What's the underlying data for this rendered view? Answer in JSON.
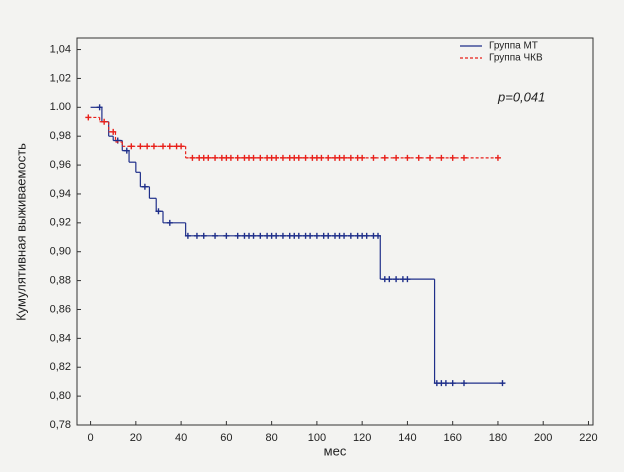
{
  "chart_data": {
    "type": "kaplan-meier",
    "xlabel": "мес",
    "ylabel": "Кумулятивная выживаемость",
    "annotation": "p=0,041",
    "xlim": [
      -6,
      222
    ],
    "xticks": [
      0,
      20,
      40,
      60,
      80,
      100,
      120,
      140,
      160,
      180,
      200,
      220
    ],
    "ylim": [
      0.78,
      1.048
    ],
    "yticks": [
      {
        "value": 0.78,
        "label": "0,78"
      },
      {
        "value": 0.8,
        "label": "0,80"
      },
      {
        "value": 0.82,
        "label": "0,82"
      },
      {
        "value": 0.84,
        "label": "0,84"
      },
      {
        "value": 0.86,
        "label": "0,86"
      },
      {
        "value": 0.88,
        "label": "0,88"
      },
      {
        "value": 0.9,
        "label": "0,90"
      },
      {
        "value": 0.92,
        "label": "0,92"
      },
      {
        "value": 0.94,
        "label": "0,94"
      },
      {
        "value": 0.96,
        "label": "0,96"
      },
      {
        "value": 0.98,
        "label": "0,98"
      },
      {
        "value": 1.0,
        "label": "1.00"
      },
      {
        "value": 1.02,
        "label": "1,02"
      },
      {
        "value": 1.04,
        "label": "1,04"
      }
    ],
    "legend": "top-right",
    "series": [
      {
        "name": "Группа МТ",
        "color": "#1f2f8a",
        "dash": false,
        "x": [
          0,
          5,
          8,
          10,
          14,
          17,
          20,
          22,
          26,
          29,
          32,
          42,
          128,
          152,
          183
        ],
        "values": [
          1.0,
          0.99,
          0.98,
          0.977,
          0.97,
          0.962,
          0.955,
          0.945,
          0.937,
          0.928,
          0.92,
          0.911,
          0.881,
          0.809,
          0.809
        ],
        "censored": [
          4,
          12,
          16,
          24,
          30,
          35,
          43,
          47,
          50,
          55,
          60,
          65,
          68,
          70,
          72,
          75,
          78,
          80,
          82,
          85,
          88,
          90,
          92,
          95,
          97,
          100,
          103,
          105,
          108,
          110,
          112,
          115,
          118,
          120,
          122,
          125,
          127,
          130,
          132,
          135,
          138,
          140,
          153,
          155,
          157,
          160,
          165,
          182
        ]
      },
      {
        "name": "Группа ЧКВ",
        "color": "#e8201a",
        "dash": true,
        "x": [
          -1,
          4,
          8,
          11,
          14,
          42,
          180
        ],
        "values": [
          0.993,
          0.99,
          0.983,
          0.976,
          0.973,
          0.965,
          0.965
        ],
        "censored": [
          -1,
          6,
          10,
          18,
          22,
          25,
          28,
          32,
          35,
          38,
          40,
          45,
          48,
          50,
          52,
          55,
          58,
          60,
          62,
          65,
          68,
          70,
          72,
          75,
          78,
          80,
          82,
          85,
          88,
          90,
          92,
          95,
          98,
          100,
          102,
          105,
          108,
          110,
          112,
          115,
          118,
          120,
          125,
          130,
          135,
          140,
          145,
          150,
          155,
          160,
          165,
          180
        ]
      }
    ]
  }
}
